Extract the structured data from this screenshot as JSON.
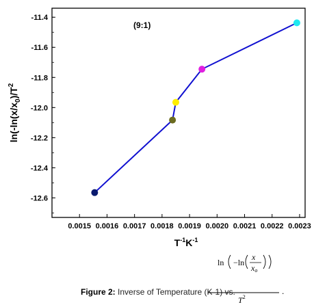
{
  "chart_data": {
    "type": "line",
    "annotation": "(9:1)",
    "xlabel_main": "T",
    "xlabel_sup1": "-1",
    "xlabel_unit": "K",
    "xlabel_sup2": "-1",
    "ylabel_main": "ln(-ln(x/x",
    "ylabel_sub": "0",
    "ylabel_end": ")/T",
    "ylabel_sup": "2",
    "xlim": [
      0.0014,
      0.00232
    ],
    "ylim": [
      -12.73,
      -11.34
    ],
    "x_ticks": [
      0.0015,
      0.0016,
      0.0017,
      0.0018,
      0.0019,
      0.002,
      0.0021,
      0.0022,
      0.0023
    ],
    "x_tick_labels": [
      "0.0015",
      "0.0016",
      "0.0017",
      "0.0018",
      "0.0019",
      "0.0020",
      "0.0021",
      "0.0022",
      "0.0023"
    ],
    "y_ticks": [
      -12.6,
      -12.4,
      -12.2,
      -12.0,
      -11.8,
      -11.6,
      -11.4
    ],
    "y_tick_labels": [
      "-12.6",
      "-12.4",
      "-12.2",
      "-12.0",
      "-11.8",
      "-11.6",
      "-11.4"
    ],
    "line_color": "#1010d0",
    "points": [
      {
        "x": 0.001555,
        "y": -12.565,
        "color": "#0a1a6e"
      },
      {
        "x": 0.001838,
        "y": -12.083,
        "color": "#6b6b20"
      },
      {
        "x": 0.00185,
        "y": -11.965,
        "color": "#ffee00"
      },
      {
        "x": 0.001945,
        "y": -11.745,
        "color": "#e020e0"
      },
      {
        "x": 0.00229,
        "y": -11.437,
        "color": "#20e8f0"
      }
    ]
  },
  "caption": {
    "label": "Figure 2:",
    "text": "Inverse of Temperature (K-1) vs.",
    "formula_ln1": "ln",
    "formula_ln2": "−ln",
    "formula_x": "x",
    "formula_x0": "x",
    "formula_x0_sub": "o",
    "formula_T": "T",
    "formula_T_sup": "2",
    "trailing": "."
  }
}
